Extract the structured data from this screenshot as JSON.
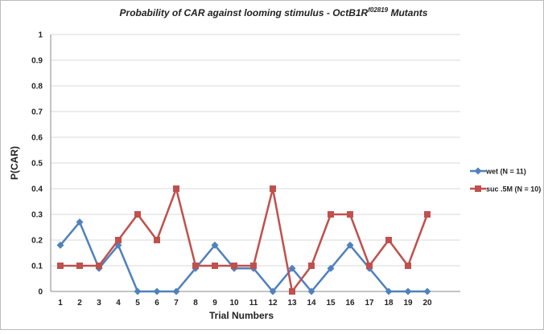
{
  "chart_data": {
    "type": "line",
    "title": {
      "text": "Probability of CAR against looming stimulus - OctB1R",
      "superscript": "f02819",
      "suffix": " Mutants"
    },
    "x_label": "Trial Numbers",
    "y_label": "P(CAR)",
    "categories": [
      "1",
      "2",
      "3",
      "4",
      "5",
      "6",
      "7",
      "8",
      "9",
      "10",
      "11",
      "12",
      "13",
      "14",
      "15",
      "16",
      "17",
      "18",
      "19",
      "20"
    ],
    "series": [
      {
        "name": "wet (N = 11)",
        "color": "#4f81bd",
        "marker": "diamond",
        "values": [
          0.18,
          0.27,
          0.09,
          0.18,
          0,
          0,
          0,
          0.09,
          0.18,
          0.09,
          0.09,
          0,
          0.09,
          0,
          0.09,
          0.18,
          0.09,
          0,
          0,
          0
        ]
      },
      {
        "name": "suc .5M (N = 10)",
        "color": "#c0504d",
        "marker": "square",
        "values": [
          0.1,
          0.1,
          0.1,
          0.2,
          0.3,
          0.2,
          0.4,
          0.1,
          0.1,
          0.1,
          0.1,
          0.4,
          0,
          0.1,
          0.3,
          0.3,
          0.1,
          0.2,
          0.1,
          0.3
        ]
      }
    ],
    "ylim": [
      0,
      1
    ],
    "yticks": [
      0,
      0.1,
      0.2,
      0.3,
      0.4,
      0.5,
      0.6,
      0.7,
      0.8,
      0.9,
      1
    ],
    "grid": true,
    "legend": "right"
  }
}
